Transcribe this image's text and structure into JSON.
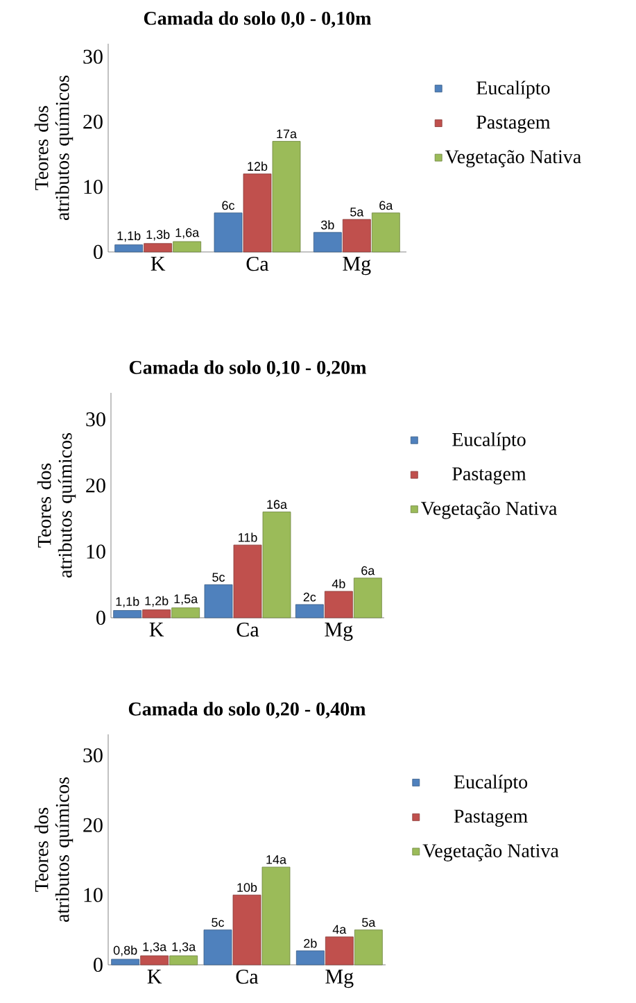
{
  "chart_data": [
    {
      "type": "bar",
      "title": "Camada do solo 0,0 - 0,10m",
      "ylabel": "Teores dos atributos químicos",
      "categories": [
        "K",
        "Ca",
        "Mg"
      ],
      "ylim": [
        0,
        32
      ],
      "yticks": [
        0,
        10,
        20,
        30
      ],
      "legend": "right",
      "series": [
        {
          "name": "Eucalípto",
          "color": "#4f81bd",
          "values": [
            1.1,
            6,
            3
          ],
          "value_labels": [
            "1,1b",
            "6c",
            "3b"
          ]
        },
        {
          "name": "Pastagem",
          "color": "#c0504d",
          "values": [
            1.3,
            12,
            5
          ],
          "value_labels": [
            "1,3b",
            "12b",
            "5a"
          ]
        },
        {
          "name": "Vegetação Nativa",
          "color": "#9bbb59",
          "values": [
            1.6,
            17,
            6
          ],
          "value_labels": [
            "1,6a",
            "17a",
            "6a"
          ]
        }
      ]
    },
    {
      "type": "bar",
      "title": "Camada do solo 0,10 - 0,20m",
      "ylabel": "Teores dos atributos químicos",
      "categories": [
        "K",
        "Ca",
        "Mg"
      ],
      "ylim": [
        0,
        34
      ],
      "yticks": [
        0,
        10,
        20,
        30
      ],
      "legend": "right",
      "series": [
        {
          "name": "Eucalípto",
          "color": "#4f81bd",
          "values": [
            1.1,
            5,
            2
          ],
          "value_labels": [
            "1,1b",
            "5c",
            "2c"
          ]
        },
        {
          "name": "Pastagem",
          "color": "#c0504d",
          "values": [
            1.2,
            11,
            4
          ],
          "value_labels": [
            "1,2b",
            "11b",
            "4b"
          ]
        },
        {
          "name": "Vegetação Nativa",
          "color": "#9bbb59",
          "values": [
            1.5,
            16,
            6
          ],
          "value_labels": [
            "1,5a",
            "16a",
            "6a"
          ]
        }
      ]
    },
    {
      "type": "bar",
      "title": "Camada do solo 0,20 - 0,40m",
      "ylabel": "Teores dos atributos químicos",
      "categories": [
        "K",
        "Ca",
        "Mg"
      ],
      "ylim": [
        0,
        33
      ],
      "yticks": [
        0,
        10,
        20,
        30
      ],
      "legend": "right",
      "series": [
        {
          "name": "Eucalípto",
          "color": "#4f81bd",
          "values": [
            0.8,
            5,
            2
          ],
          "value_labels": [
            "0,8b",
            "5c",
            "2b"
          ]
        },
        {
          "name": "Pastagem",
          "color": "#c0504d",
          "values": [
            1.3,
            10,
            4
          ],
          "value_labels": [
            "1,3a",
            "10b",
            "4a"
          ]
        },
        {
          "name": "Vegetação Nativa",
          "color": "#9bbb59",
          "values": [
            1.3,
            14,
            5
          ],
          "value_labels": [
            "1,3a",
            "14a",
            "5a"
          ]
        }
      ]
    }
  ]
}
